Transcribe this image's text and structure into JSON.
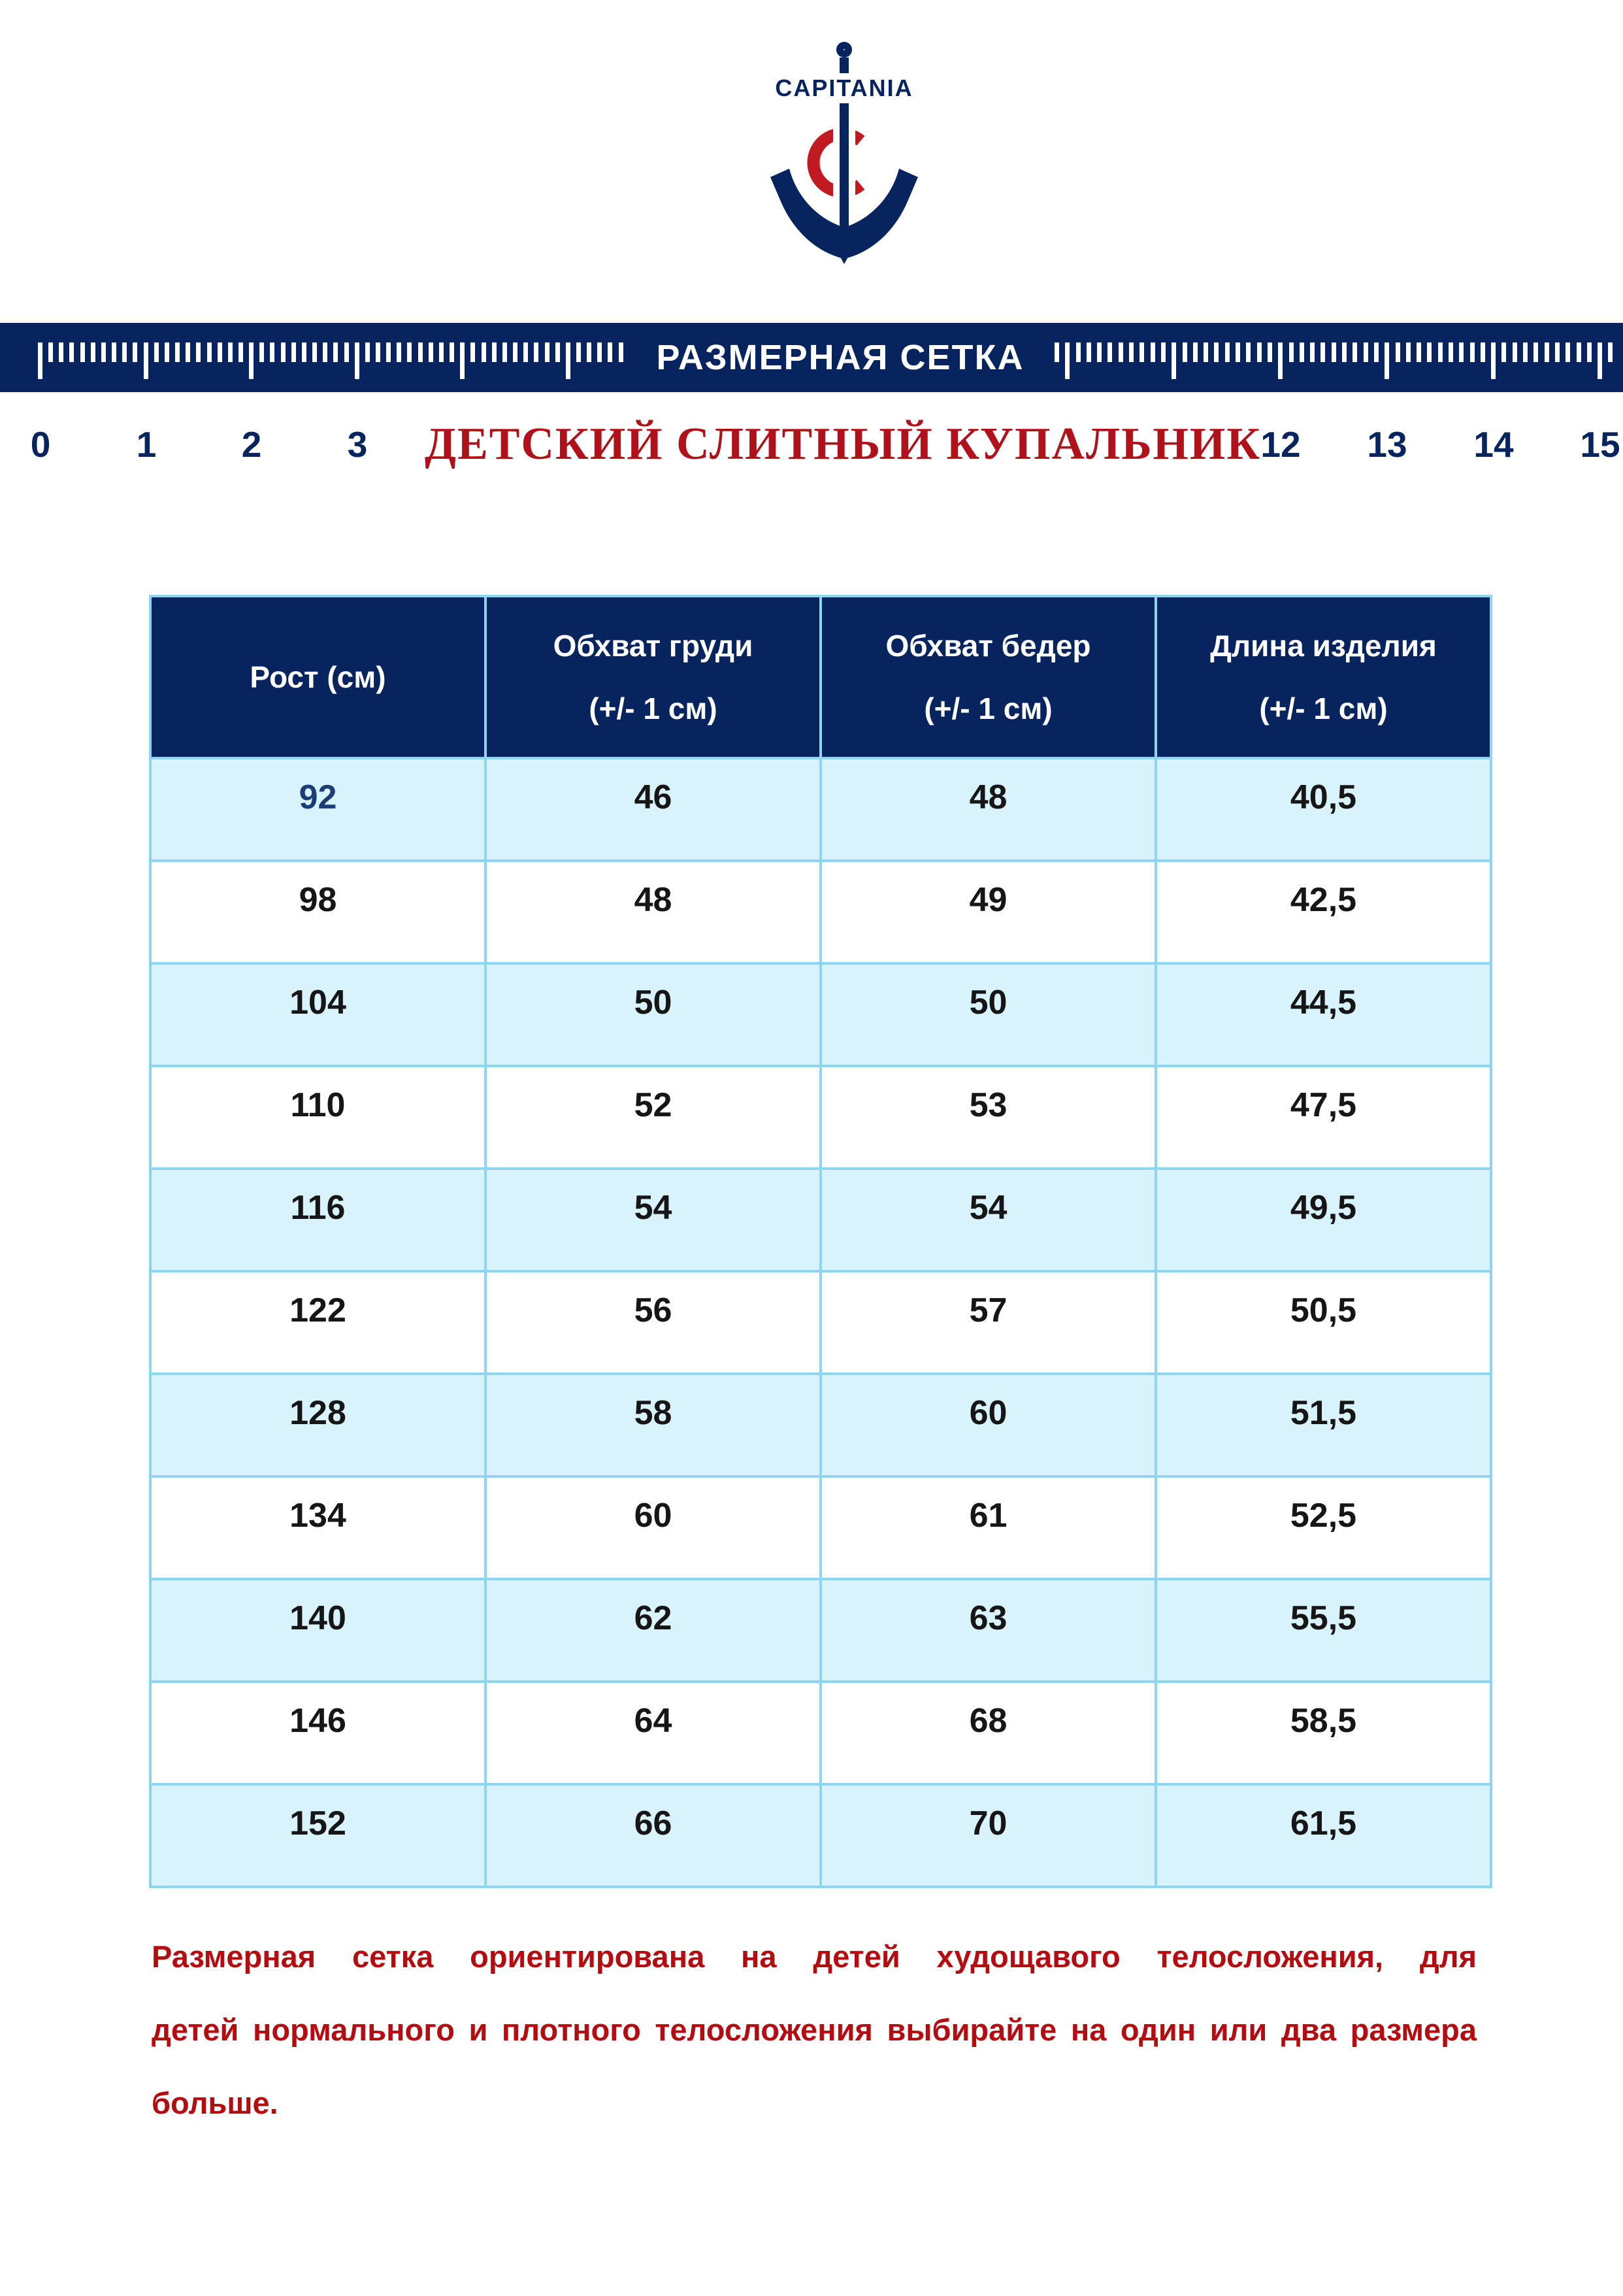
{
  "brand": {
    "name": "CAPITANIA"
  },
  "banner": {
    "label": "РАЗМЕРНАЯ СЕТКА"
  },
  "ruler": {
    "left_numbers": [
      "0",
      "1",
      "2",
      "3"
    ],
    "right_numbers": [
      "12",
      "13",
      "14",
      "15"
    ]
  },
  "product_title": "ДЕТСКИЙ СЛИТНЫЙ КУПАЛЬНИК",
  "size_table": {
    "columns": [
      {
        "line1": "Рост (см)",
        "line2": ""
      },
      {
        "line1": "Обхват груди",
        "line2": "(+/- 1 см)"
      },
      {
        "line1": "Обхват бедер",
        "line2": "(+/- 1 см)"
      },
      {
        "line1": "Длина изделия",
        "line2": "(+/- 1 см)"
      }
    ],
    "rows": [
      [
        "92",
        "46",
        "48",
        "40,5"
      ],
      [
        "98",
        "48",
        "49",
        "42,5"
      ],
      [
        "104",
        "50",
        "50",
        "44,5"
      ],
      [
        "110",
        "52",
        "53",
        "47,5"
      ],
      [
        "116",
        "54",
        "54",
        "49,5"
      ],
      [
        "122",
        "56",
        "57",
        "50,5"
      ],
      [
        "128",
        "58",
        "60",
        "51,5"
      ],
      [
        "134",
        "60",
        "61",
        "52,5"
      ],
      [
        "140",
        "62",
        "63",
        "55,5"
      ],
      [
        "146",
        "64",
        "68",
        "58,5"
      ],
      [
        "152",
        "66",
        "70",
        "61,5"
      ]
    ]
  },
  "note": {
    "lines": [
      "Размерная сетка ориентирована на детей худощавого телосложения, для",
      "детей нормального и плотного телосложения выбирайте на один или два размера",
      "больше."
    ]
  },
  "colors": {
    "navy": "#07245e",
    "red": "#b0121c",
    "note-red": "#b30d12",
    "logo-red": "#c11a23",
    "row-blue": "#d9f3fc",
    "border-blue": "#8fd5f1",
    "cell-text": "#161616",
    "accent-value": "#1c3e78"
  }
}
